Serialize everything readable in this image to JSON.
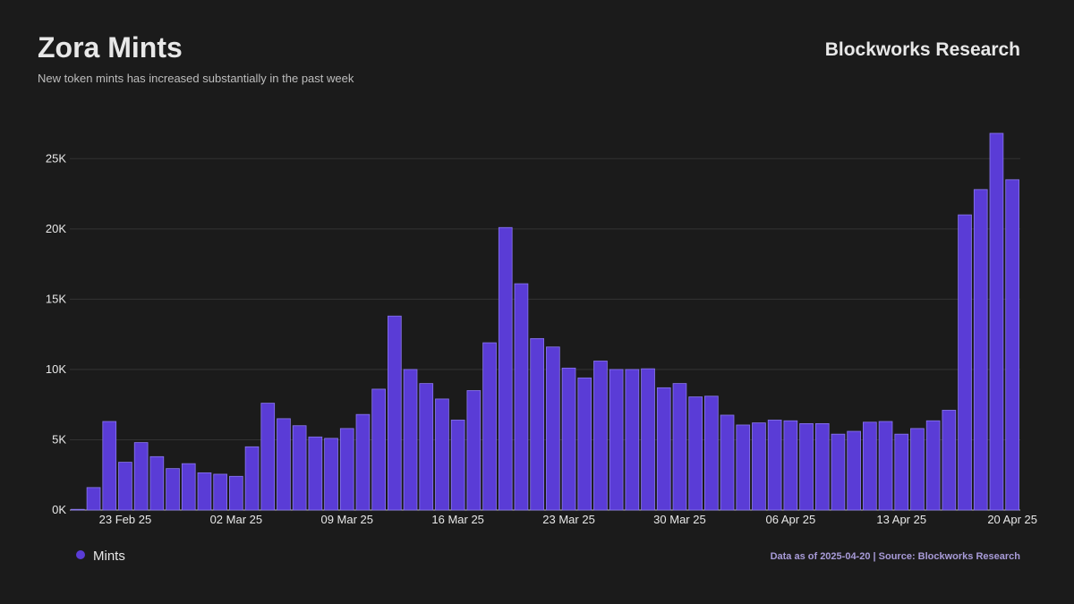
{
  "header": {
    "brand": "Blockworks Research"
  },
  "footer": {
    "source": "Data as of 2025-04-20 | Source: Blockworks Research"
  },
  "chart_data": {
    "type": "bar",
    "title": "Zora Mints",
    "subtitle": "New token mints has increased substantially in the past week",
    "categories": [
      null,
      null,
      null,
      "23 Feb 25",
      null,
      null,
      null,
      null,
      null,
      null,
      "02 Mar 25",
      null,
      null,
      null,
      null,
      null,
      null,
      "09 Mar 25",
      null,
      null,
      null,
      null,
      null,
      null,
      "16 Mar 25",
      null,
      null,
      null,
      null,
      null,
      null,
      "23 Mar 25",
      null,
      null,
      null,
      null,
      null,
      null,
      "30 Mar 25",
      null,
      null,
      null,
      null,
      null,
      null,
      "06 Apr 25",
      null,
      null,
      null,
      null,
      null,
      null,
      "13 Apr 25",
      null,
      null,
      null,
      null,
      null,
      null,
      "20 Apr 25"
    ],
    "series": [
      {
        "name": "Mints",
        "color": "#5a3cd6",
        "values": [
          50,
          1600,
          6300,
          3400,
          4800,
          3800,
          2950,
          3300,
          2650,
          2550,
          2400,
          4500,
          7600,
          6500,
          6000,
          5200,
          5100,
          5800,
          6800,
          8600,
          13800,
          10000,
          9000,
          7900,
          6400,
          8500,
          11900,
          20100,
          16100,
          12200,
          11600,
          10100,
          9400,
          10600,
          10000,
          10000,
          10050,
          8700,
          9000,
          8050,
          8100,
          6750,
          6050,
          6200,
          6400,
          6350,
          6150,
          6150,
          5400,
          5600,
          6250,
          6300,
          5400,
          5800,
          6350,
          7100,
          21000,
          22800,
          26800,
          23500
        ]
      }
    ],
    "ylim": [
      0,
      27500
    ],
    "yticks": [
      {
        "value": 0,
        "label": "0K"
      },
      {
        "value": 5000,
        "label": "5K"
      },
      {
        "value": 10000,
        "label": "10K"
      },
      {
        "value": 15000,
        "label": "15K"
      },
      {
        "value": 20000,
        "label": "20K"
      },
      {
        "value": 25000,
        "label": "25K"
      }
    ],
    "grid": true
  }
}
